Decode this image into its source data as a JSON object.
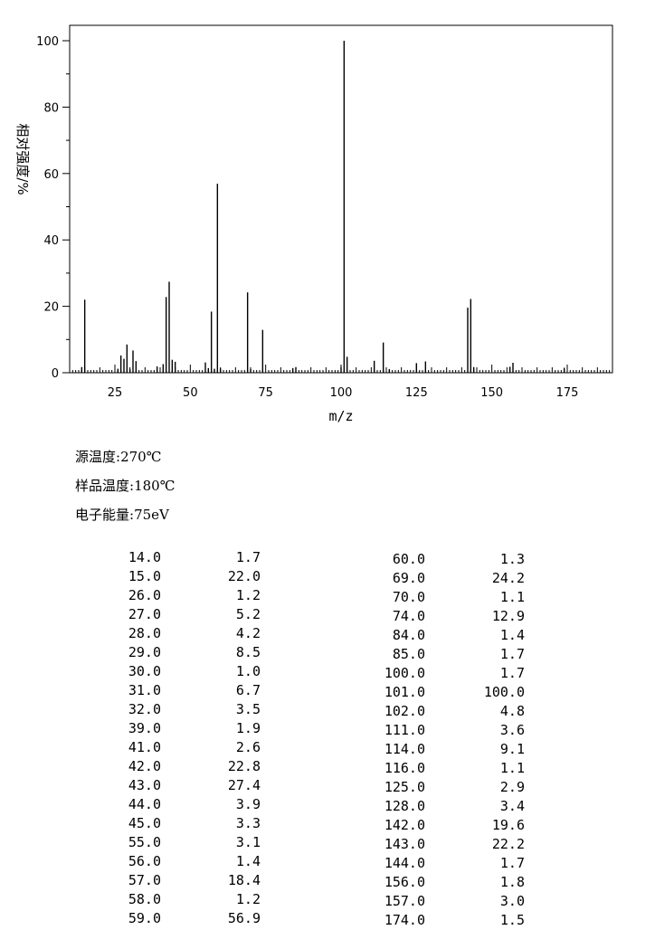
{
  "chart_data": {
    "type": "bar",
    "xlabel": "m/z",
    "ylabel": "相对强度/%",
    "xlim": [
      10,
      190
    ],
    "ylim": [
      0,
      100
    ],
    "xticks": [
      25,
      50,
      75,
      100,
      125,
      150,
      175
    ],
    "yticks": [
      0,
      20,
      40,
      60,
      80,
      100
    ],
    "color": "#000000",
    "peaks": [
      [
        14.0,
        1.7
      ],
      [
        15.0,
        22.0
      ],
      [
        26.0,
        1.2
      ],
      [
        27.0,
        5.2
      ],
      [
        28.0,
        4.2
      ],
      [
        29.0,
        8.5
      ],
      [
        30.0,
        1.0
      ],
      [
        31.0,
        6.7
      ],
      [
        32.0,
        3.5
      ],
      [
        39.0,
        1.9
      ],
      [
        41.0,
        2.6
      ],
      [
        42.0,
        22.8
      ],
      [
        43.0,
        27.4
      ],
      [
        44.0,
        3.9
      ],
      [
        45.0,
        3.3
      ],
      [
        55.0,
        3.1
      ],
      [
        56.0,
        1.4
      ],
      [
        57.0,
        18.4
      ],
      [
        58.0,
        1.2
      ],
      [
        59.0,
        56.9
      ],
      [
        60.0,
        1.3
      ],
      [
        69.0,
        24.2
      ],
      [
        70.0,
        1.1
      ],
      [
        74.0,
        12.9
      ],
      [
        84.0,
        1.4
      ],
      [
        85.0,
        1.7
      ],
      [
        100.0,
        1.7
      ],
      [
        101.0,
        100.0
      ],
      [
        102.0,
        4.8
      ],
      [
        111.0,
        3.6
      ],
      [
        114.0,
        9.1
      ],
      [
        116.0,
        1.1
      ],
      [
        125.0,
        2.9
      ],
      [
        128.0,
        3.4
      ],
      [
        142.0,
        19.6
      ],
      [
        143.0,
        22.2
      ],
      [
        144.0,
        1.7
      ],
      [
        156.0,
        1.8
      ],
      [
        157.0,
        3.0
      ],
      [
        174.0,
        1.5
      ]
    ]
  },
  "info": [
    {
      "label": "源温度",
      "value": "270℃"
    },
    {
      "label": "样品温度",
      "value": "180℃"
    },
    {
      "label": "电子能量",
      "value": "75eV"
    }
  ],
  "table_left": [
    [
      "14.0",
      "1.7"
    ],
    [
      "15.0",
      "22.0"
    ],
    [
      "26.0",
      "1.2"
    ],
    [
      "27.0",
      "5.2"
    ],
    [
      "28.0",
      "4.2"
    ],
    [
      "29.0",
      "8.5"
    ],
    [
      "30.0",
      "1.0"
    ],
    [
      "31.0",
      "6.7"
    ],
    [
      "32.0",
      "3.5"
    ],
    [
      "39.0",
      "1.9"
    ],
    [
      "41.0",
      "2.6"
    ],
    [
      "42.0",
      "22.8"
    ],
    [
      "43.0",
      "27.4"
    ],
    [
      "44.0",
      "3.9"
    ],
    [
      "45.0",
      "3.3"
    ],
    [
      "55.0",
      "3.1"
    ],
    [
      "56.0",
      "1.4"
    ],
    [
      "57.0",
      "18.4"
    ],
    [
      "58.0",
      "1.2"
    ],
    [
      "59.0",
      "56.9"
    ]
  ],
  "table_right": [
    [
      "60.0",
      "1.3"
    ],
    [
      "69.0",
      "24.2"
    ],
    [
      "70.0",
      "1.1"
    ],
    [
      "74.0",
      "12.9"
    ],
    [
      "84.0",
      "1.4"
    ],
    [
      "85.0",
      "1.7"
    ],
    [
      "100.0",
      "1.7"
    ],
    [
      "101.0",
      "100.0"
    ],
    [
      "102.0",
      "4.8"
    ],
    [
      "111.0",
      "3.6"
    ],
    [
      "114.0",
      "9.1"
    ],
    [
      "116.0",
      "1.1"
    ],
    [
      "125.0",
      "2.9"
    ],
    [
      "128.0",
      "3.4"
    ],
    [
      "142.0",
      "19.6"
    ],
    [
      "143.0",
      "22.2"
    ],
    [
      "144.0",
      "1.7"
    ],
    [
      "156.0",
      "1.8"
    ],
    [
      "157.0",
      "3.0"
    ],
    [
      "174.0",
      "1.5"
    ]
  ]
}
